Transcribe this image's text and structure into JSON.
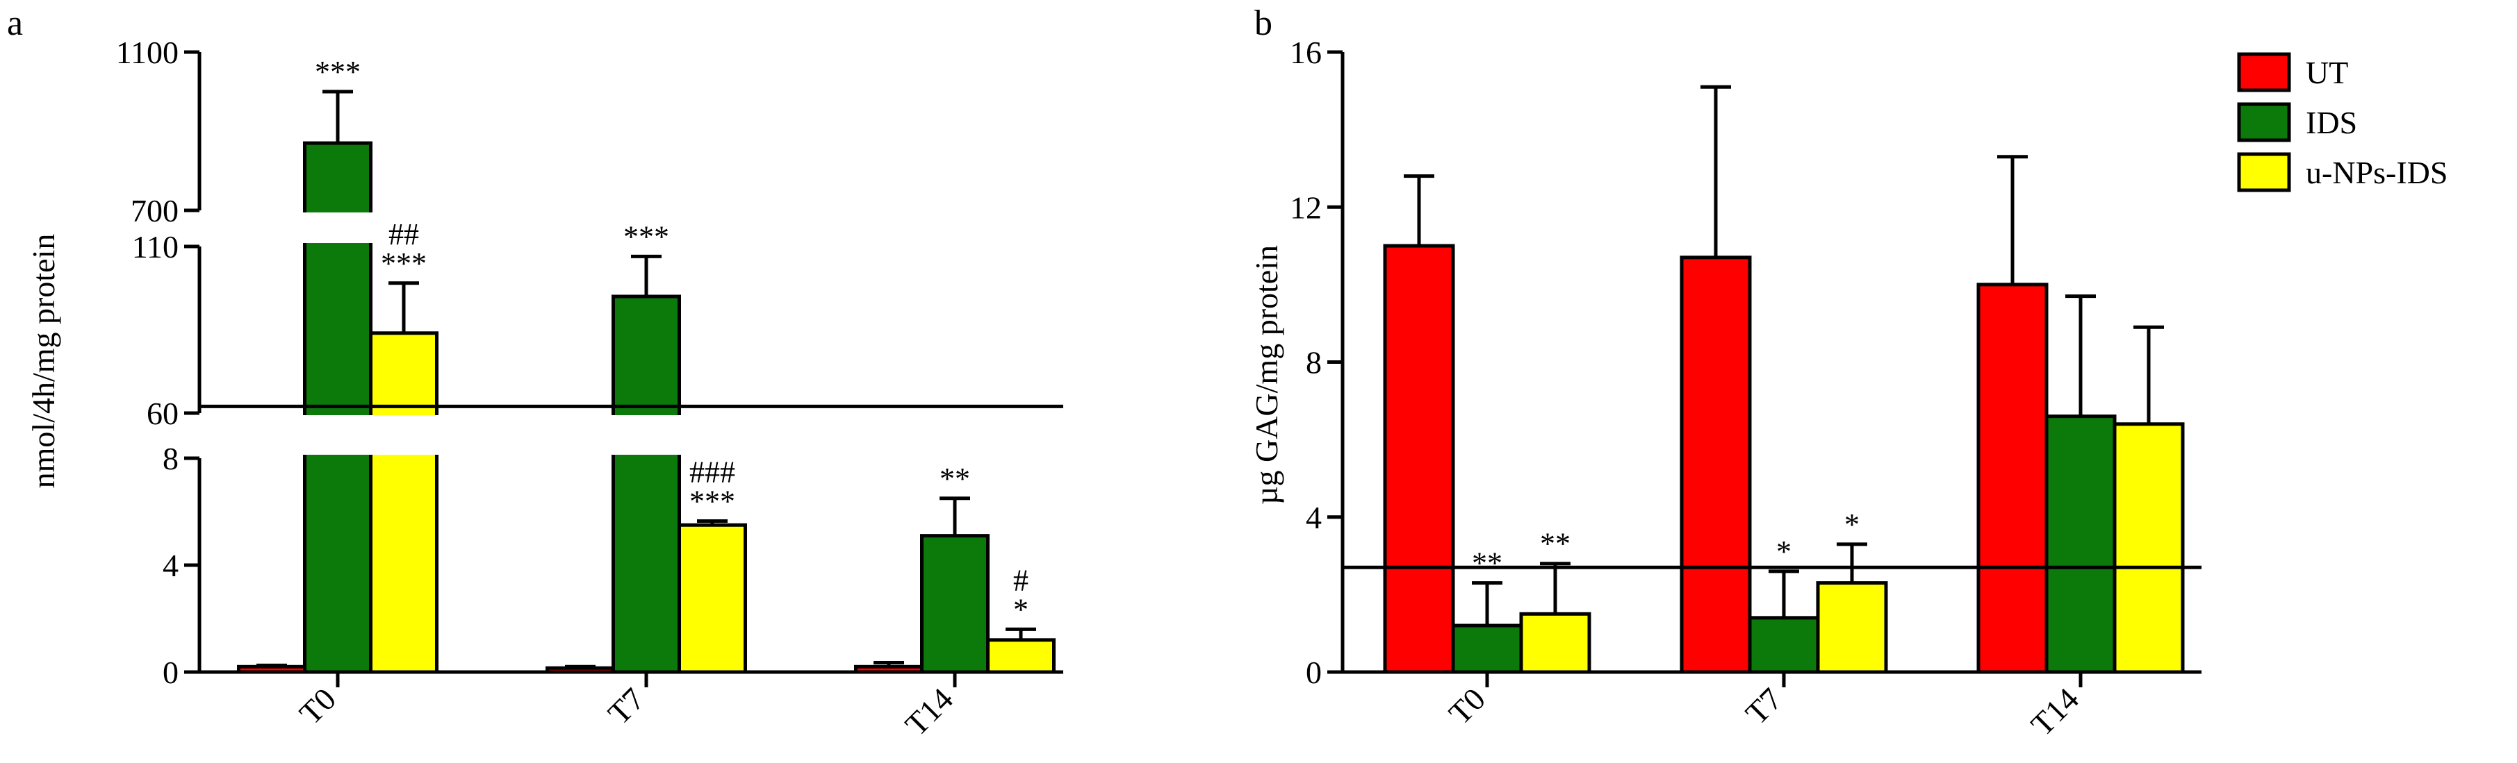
{
  "panel_labels": {
    "a": "a",
    "b": "b"
  },
  "colors": {
    "UT": "#ff0000",
    "IDS": "#0b7a0b",
    "u-NPs-IDS": "#ffff00"
  },
  "chart_data": [
    {
      "panel": "a",
      "type": "bar",
      "ylabel": "nmol/4h/mg protein",
      "categories": [
        "T0",
        "T7",
        "T14"
      ],
      "y_axis_broken": true,
      "y_segments": [
        {
          "range": [
            0,
            8
          ],
          "ticks": [
            "0",
            "4",
            "8"
          ],
          "tick_values": [
            0,
            4,
            8
          ]
        },
        {
          "range": [
            60,
            110
          ],
          "ticks": [
            "60",
            "110"
          ],
          "tick_values": [
            60,
            110
          ]
        },
        {
          "range": [
            700,
            1100
          ],
          "ticks": [
            "700",
            "1100"
          ],
          "tick_values": [
            700,
            1100
          ]
        }
      ],
      "reference_line": 62,
      "series": [
        {
          "name": "UT",
          "values": [
            0.2,
            0.15,
            0.2
          ],
          "errors": [
            0.05,
            0.05,
            0.15
          ]
        },
        {
          "name": "IDS",
          "values": [
            870,
            95,
            5.1
          ],
          "errors": [
            130,
            12,
            1.4
          ]
        },
        {
          "name": "u-NPs-IDS",
          "values": [
            84,
            null,
            1.2
          ],
          "errors": [
            15,
            null,
            0.4
          ]
        }
      ],
      "overflow_values": [
        {
          "series": "u-NPs-IDS",
          "category": "T7",
          "value": 5.5,
          "error": 0.15
        }
      ],
      "annotations": [
        {
          "category": "T0",
          "series": "IDS",
          "text": "***"
        },
        {
          "category": "T0",
          "series": "u-NPs-IDS",
          "lines": [
            "##",
            "***"
          ]
        },
        {
          "category": "T7",
          "series": "IDS",
          "text": "***"
        },
        {
          "category": "T7",
          "series": "u-NPs-IDS",
          "lines": [
            "###",
            "***"
          ]
        },
        {
          "category": "T14",
          "series": "IDS",
          "text": "**"
        },
        {
          "category": "T14",
          "series": "u-NPs-IDS",
          "lines": [
            "#",
            "*"
          ]
        }
      ]
    },
    {
      "panel": "b",
      "type": "bar",
      "ylabel": "µg GAG/mg protein",
      "categories": [
        "T0",
        "T7",
        "T14"
      ],
      "ylim": [
        0,
        16
      ],
      "yticks": [
        0,
        4,
        8,
        12,
        16
      ],
      "reference_line": 2.7,
      "legend": {
        "placement": "top-right",
        "entries": [
          "UT",
          "IDS",
          "u-NPs-IDS"
        ]
      },
      "series": [
        {
          "name": "UT",
          "values": [
            11.0,
            10.7,
            10.0
          ],
          "errors": [
            1.8,
            4.4,
            3.3
          ]
        },
        {
          "name": "IDS",
          "values": [
            1.2,
            1.4,
            6.6
          ],
          "errors": [
            1.1,
            1.2,
            3.1
          ]
        },
        {
          "name": "u-NPs-IDS",
          "values": [
            1.5,
            2.3,
            6.4
          ],
          "errors": [
            1.3,
            1.0,
            2.5
          ]
        }
      ],
      "annotations": [
        {
          "category": "T0",
          "series": "IDS",
          "text": "**"
        },
        {
          "category": "T0",
          "series": "u-NPs-IDS",
          "text": "**"
        },
        {
          "category": "T7",
          "series": "IDS",
          "text": "*"
        },
        {
          "category": "T7",
          "series": "u-NPs-IDS",
          "text": "*"
        }
      ]
    }
  ]
}
